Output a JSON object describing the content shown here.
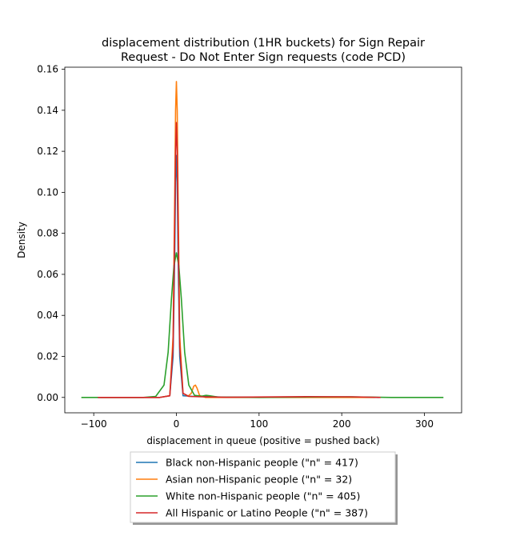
{
  "chart_data": {
    "type": "line",
    "title_lines": [
      "displacement distribution (1HR buckets) for Sign Repair",
      "Request - Do Not Enter Sign requests (code PCD)"
    ],
    "xlabel": "displacement in queue (positive = pushed back)",
    "ylabel": "Density",
    "xlim": [
      -135,
      345
    ],
    "ylim": [
      -0.0075,
      0.161
    ],
    "xticks": [
      -100,
      0,
      100,
      200,
      300
    ],
    "xtick_labels": [
      "−100",
      "0",
      "100",
      "200",
      "300"
    ],
    "yticks": [
      0.0,
      0.02,
      0.04,
      0.06,
      0.08,
      0.1,
      0.12,
      0.14,
      0.16
    ],
    "ytick_labels": [
      "0.00",
      "0.02",
      "0.04",
      "0.06",
      "0.08",
      "0.10",
      "0.12",
      "0.14",
      "0.16"
    ],
    "grid": false,
    "legend_position": "bottom-center (below plot)",
    "series": [
      {
        "name": "Black non-Hispanic people (\"n\" = 417)",
        "color": "#1f77b4",
        "points": [
          [
            -95,
            0
          ],
          [
            -20,
            0
          ],
          [
            -8,
            0.0008
          ],
          [
            -4,
            0.02
          ],
          [
            -2,
            0.07
          ],
          [
            -1,
            0.105
          ],
          [
            0,
            0.118
          ],
          [
            1,
            0.105
          ],
          [
            2,
            0.07
          ],
          [
            4,
            0.02
          ],
          [
            8,
            0.0008
          ],
          [
            20,
            0.0005
          ],
          [
            35,
            0.0005
          ],
          [
            60,
            0.0001
          ],
          [
            160,
            0.0002
          ],
          [
            210,
            0.0002
          ],
          [
            245,
            0
          ]
        ]
      },
      {
        "name": "Asian non-Hispanic people (\"n\" = 32)",
        "color": "#ff7f0e",
        "points": [
          [
            -92,
            0
          ],
          [
            -20,
            0
          ],
          [
            -8,
            0.0008
          ],
          [
            -4,
            0.03
          ],
          [
            -2,
            0.1
          ],
          [
            -1,
            0.14
          ],
          [
            0,
            0.154
          ],
          [
            1,
            0.14
          ],
          [
            2,
            0.1
          ],
          [
            4,
            0.03
          ],
          [
            8,
            0.002
          ],
          [
            14,
            0.0006
          ],
          [
            18,
            0.002
          ],
          [
            21,
            0.0055
          ],
          [
            23,
            0.006
          ],
          [
            25,
            0.0045
          ],
          [
            28,
            0.001
          ],
          [
            35,
            0
          ],
          [
            100,
            0
          ],
          [
            200,
            0
          ],
          [
            240,
            0
          ]
        ]
      },
      {
        "name": "White non-Hispanic people (\"n\" = 405)",
        "color": "#2ca02c",
        "points": [
          [
            -115,
            0
          ],
          [
            -40,
            0
          ],
          [
            -25,
            0.0005
          ],
          [
            -15,
            0.006
          ],
          [
            -10,
            0.022
          ],
          [
            -6,
            0.048
          ],
          [
            -3,
            0.064
          ],
          [
            0,
            0.0705
          ],
          [
            3,
            0.064
          ],
          [
            6,
            0.048
          ],
          [
            10,
            0.022
          ],
          [
            15,
            0.006
          ],
          [
            22,
            0.001
          ],
          [
            30,
            0.0006
          ],
          [
            36,
            0.001
          ],
          [
            40,
            0.0008
          ],
          [
            50,
            0.0002
          ],
          [
            100,
            0
          ],
          [
            160,
            0.0002
          ],
          [
            210,
            0.0003
          ],
          [
            260,
            0
          ],
          [
            323,
            0
          ]
        ]
      },
      {
        "name": "All Hispanic or Latino People (\"n\" = 387)",
        "color": "#d62728",
        "points": [
          [
            -95,
            0
          ],
          [
            -20,
            0
          ],
          [
            -8,
            0.0008
          ],
          [
            -4,
            0.025
          ],
          [
            -2,
            0.085
          ],
          [
            -1,
            0.12
          ],
          [
            0,
            0.134
          ],
          [
            1,
            0.12
          ],
          [
            2,
            0.085
          ],
          [
            4,
            0.025
          ],
          [
            8,
            0.002
          ],
          [
            15,
            0.0005
          ],
          [
            30,
            0.0003
          ],
          [
            60,
            0.0001
          ],
          [
            160,
            0.0004
          ],
          [
            212,
            0.0003
          ],
          [
            247,
            0
          ]
        ]
      }
    ]
  }
}
